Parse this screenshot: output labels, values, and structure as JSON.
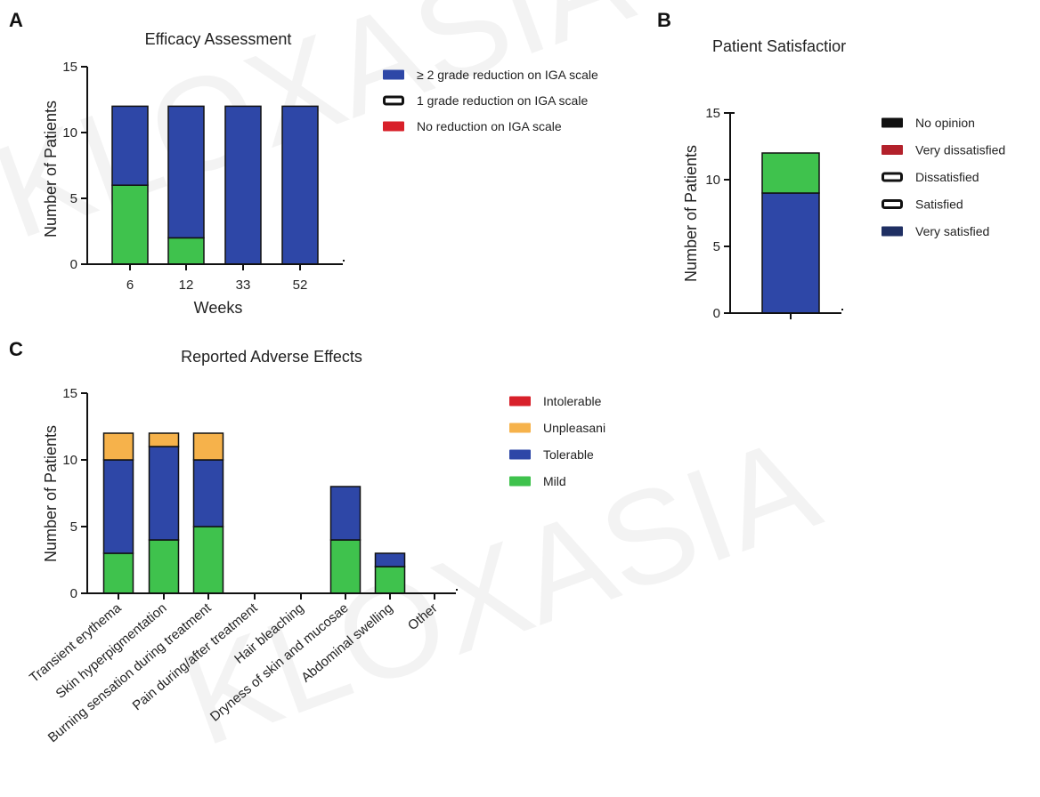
{
  "watermark": "KLOXASIA",
  "colors": {
    "blue": "#2e47a7",
    "green": "#3fc24d",
    "orange": "#f6b24b",
    "red": "#d8202a",
    "dark_red": "#b3212b",
    "navy": "#1f2f63",
    "black": "#111111",
    "white": "#ffffff"
  },
  "chart_data": [
    {
      "panel": "A",
      "type": "bar",
      "stacked": true,
      "title": "Efficacy Assessment",
      "xlabel": "Weeks",
      "ylabel": "Number of Patients",
      "ylim": [
        0,
        15
      ],
      "yticks": [
        0,
        5,
        10,
        15
      ],
      "categories": [
        "6",
        "12",
        "33",
        "52"
      ],
      "series": [
        {
          "name": "No reduction on IGA scale",
          "color": "#d8202a",
          "values": [
            0,
            0,
            0,
            0
          ]
        },
        {
          "name": "1 grade reduction on IGA scale",
          "color": "#3fc24d",
          "values": [
            6,
            2,
            0,
            0
          ]
        },
        {
          "name": "≥ 2 grade reduction on IGA scale",
          "color": "#2e47a7",
          "values": [
            6,
            10,
            12,
            12
          ]
        }
      ],
      "legend": [
        {
          "label": "≥ 2 grade reduction on IGA scale",
          "color": "#2e47a7",
          "style": "fill"
        },
        {
          "label": "1 grade reduction on IGA scale",
          "color": "#3fc24d",
          "style": "outline"
        },
        {
          "label": "No reduction on IGA scale",
          "color": "#d8202a",
          "style": "fill"
        }
      ],
      "legend_placement": "right"
    },
    {
      "panel": "B",
      "type": "bar",
      "stacked": true,
      "title": "Patient Satisfactior",
      "xlabel": "",
      "ylabel": "Number of Patients",
      "ylim": [
        0,
        15
      ],
      "yticks": [
        0,
        5,
        10,
        15
      ],
      "categories": [
        ""
      ],
      "series": [
        {
          "name": "Very satisfied",
          "color": "#2e47a7",
          "values": [
            9
          ]
        },
        {
          "name": "Satisfied",
          "color": "#3fc24d",
          "values": [
            3
          ]
        },
        {
          "name": "Dissatisfied",
          "color": "#ffffff",
          "values": [
            0
          ]
        },
        {
          "name": "Very dissatisfied",
          "color": "#b3212b",
          "values": [
            0
          ]
        },
        {
          "name": "No opinion",
          "color": "#111111",
          "values": [
            0
          ]
        }
      ],
      "legend": [
        {
          "label": "No opinion",
          "color": "#111111",
          "style": "fill"
        },
        {
          "label": "Very dissatisfied",
          "color": "#b3212b",
          "style": "fill"
        },
        {
          "label": "Dissatisfied",
          "color": "#ffffff",
          "style": "outline"
        },
        {
          "label": "Satisfied",
          "color": "#3fc24d",
          "style": "outline"
        },
        {
          "label": "Very satisfied",
          "color": "#1f2f63",
          "style": "fill"
        }
      ],
      "legend_placement": "right"
    },
    {
      "panel": "C",
      "type": "bar",
      "stacked": true,
      "title": "Reported Adverse Effects",
      "xlabel": "",
      "ylabel": "Number of Patients",
      "ylim": [
        0,
        15
      ],
      "yticks": [
        0,
        5,
        10,
        15
      ],
      "categories": [
        "Transient erythema",
        "Skin hyperpigmentation",
        "Burning sensation during treatment",
        "Pain during/after treatment",
        "Hair bleaching",
        "Dryness of skin and mucosae",
        "Abdominal swelling",
        "Other"
      ],
      "series": [
        {
          "name": "Mild",
          "color": "#3fc24d",
          "values": [
            3,
            4,
            5,
            0,
            0,
            4,
            2,
            0
          ]
        },
        {
          "name": "Tolerable",
          "color": "#2e47a7",
          "values": [
            7,
            7,
            5,
            0,
            0,
            4,
            1,
            0
          ]
        },
        {
          "name": "Unpleasant",
          "color": "#f6b24b",
          "values": [
            2,
            1,
            2,
            0,
            0,
            0,
            0,
            0
          ]
        },
        {
          "name": "Intolerable",
          "color": "#d8202a",
          "values": [
            0,
            0,
            0,
            0,
            0,
            0,
            0,
            0
          ]
        }
      ],
      "legend": [
        {
          "label": "Intolerable",
          "color": "#d8202a",
          "style": "fill"
        },
        {
          "label": "Unpleasani",
          "color": "#f6b24b",
          "style": "fill"
        },
        {
          "label": "Tolerable",
          "color": "#2e47a7",
          "style": "fill"
        },
        {
          "label": "Mild",
          "color": "#3fc24d",
          "style": "fill"
        }
      ],
      "legend_placement": "right"
    }
  ]
}
